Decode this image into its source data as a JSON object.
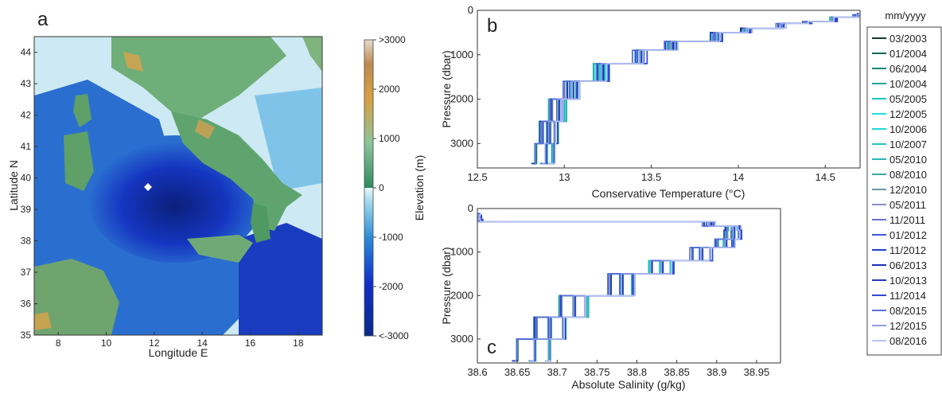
{
  "panel_a": {
    "letter": "a",
    "xlabel": "Longitude E",
    "ylabel": "Latitude N",
    "xticks": [
      "8",
      "10",
      "12",
      "14",
      "16",
      "18"
    ],
    "yticks": [
      "35",
      "36",
      "37",
      "38",
      "39",
      "40",
      "41",
      "42",
      "43",
      "44"
    ],
    "colorbar": {
      "label": "Elevation (m)",
      "ticks": [
        ">3000",
        "2000",
        "1000",
        "0",
        "-1000",
        "-2000",
        "<-3000"
      ]
    }
  },
  "legend": {
    "title": "mm/yyyy",
    "items": [
      {
        "label": "03/2003",
        "color": "#0d3b2e"
      },
      {
        "label": "01/2004",
        "color": "#0f6655"
      },
      {
        "label": "06/2004",
        "color": "#12867a"
      },
      {
        "label": "10/2004",
        "color": "#14a89a"
      },
      {
        "label": "05/2005",
        "color": "#19c9c0"
      },
      {
        "label": "12/2005",
        "color": "#22e0e0"
      },
      {
        "label": "10/2006",
        "color": "#1fd6d2"
      },
      {
        "label": "10/2007",
        "color": "#22c2c8"
      },
      {
        "label": "05/2010",
        "color": "#2ab8b8"
      },
      {
        "label": "08/2010",
        "color": "#3aa8a0"
      },
      {
        "label": "12/2010",
        "color": "#6a9aa8"
      },
      {
        "label": "05/2011",
        "color": "#8a8ec8"
      },
      {
        "label": "11/2011",
        "color": "#6a70d0"
      },
      {
        "label": "01/2012",
        "color": "#3b58d8"
      },
      {
        "label": "11/2012",
        "color": "#1e3fd0"
      },
      {
        "label": "06/2013",
        "color": "#1a32b8"
      },
      {
        "label": "10/2013",
        "color": "#2236c0"
      },
      {
        "label": "11/2014",
        "color": "#3148d6"
      },
      {
        "label": "08/2015",
        "color": "#5a72dc"
      },
      {
        "label": "12/2015",
        "color": "#8ea0e6"
      },
      {
        "label": "08/2016",
        "color": "#b8c4ef"
      }
    ]
  },
  "chart_data": [
    {
      "panel": "b",
      "type": "line",
      "xlabel": "Conservative Temperature (°C)",
      "ylabel": "Pressure (dbar)",
      "xlim": [
        12.5,
        14.7
      ],
      "ylim": [
        3550,
        0
      ],
      "xticks": [
        12.5,
        13,
        13.5,
        14,
        14.5
      ],
      "yticks": [
        0,
        1000,
        2000,
        3000
      ],
      "grid": false,
      "profile": {
        "pressure": [
          3450,
          3000,
          2500,
          2000,
          1600,
          1200,
          900,
          700,
          500,
          400,
          300,
          250,
          150,
          100,
          60
        ],
        "values": [
          12.88,
          12.9,
          12.92,
          12.97,
          13.05,
          13.22,
          13.44,
          13.62,
          13.88,
          14.05,
          14.25,
          14.4,
          14.55,
          14.68,
          14.7
        ]
      },
      "offset_min": -0.06,
      "offset_max": 0.08
    },
    {
      "panel": "c",
      "type": "line",
      "xlabel": "Absolute Salinity (g/kg)",
      "ylabel": "Pressure (dbar)",
      "xlim": [
        38.6,
        38.98
      ],
      "ylim": [
        3550,
        0
      ],
      "xticks": [
        38.6,
        38.65,
        38.7,
        38.75,
        38.8,
        38.85,
        38.9,
        38.95
      ],
      "yticks": [
        0,
        1000,
        2000,
        3000
      ],
      "grid": false,
      "profile": {
        "pressure": [
          3500,
          3000,
          2500,
          2000,
          1500,
          1200,
          900,
          700,
          500,
          400,
          300,
          250,
          150,
          100
        ],
        "values": [
          38.665,
          38.67,
          38.69,
          38.72,
          38.78,
          38.83,
          38.88,
          38.91,
          38.92,
          38.92,
          38.89,
          38.6,
          38.6,
          38.6
        ]
      },
      "offset_min": -0.02,
      "offset_max": 0.04
    }
  ]
}
